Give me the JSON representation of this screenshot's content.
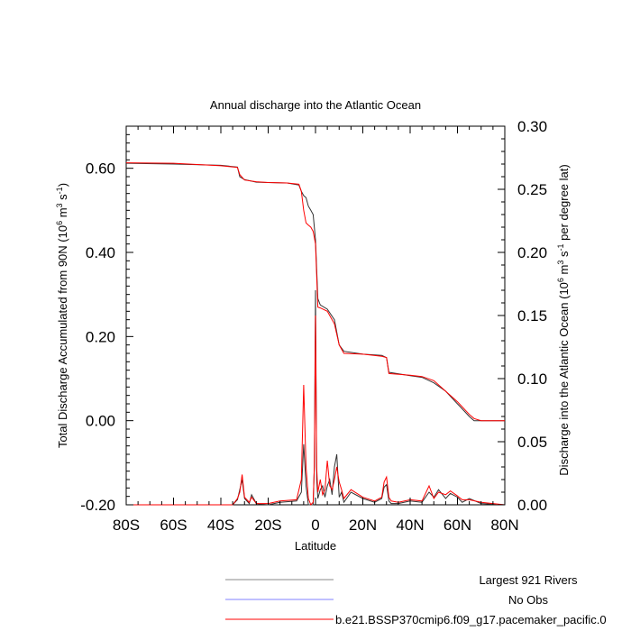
{
  "chart_data": {
    "type": "line",
    "title": "Annual discharge into the Atlantic Ocean",
    "xlabel": "Latitude",
    "ylabel_left": "Total Discharge Accumulated from 90N (10",
    "ylabel_left_sup1": "6",
    "ylabel_left_mid": " m",
    "ylabel_left_sup2": "3",
    "ylabel_left_mid2": " s",
    "ylabel_left_sup3": "-1",
    "ylabel_left_end": ")",
    "ylabel_right": "Discharge into the Atlantic Ocean (10",
    "ylabel_right_sup1": "6",
    "ylabel_right_mid": " m",
    "ylabel_right_sup2": "3",
    "ylabel_right_mid2": " s",
    "ylabel_right_sup3": "-1",
    "ylabel_right_end": " per degree lat)",
    "xlim": [
      -80,
      80
    ],
    "ylim_left": [
      -0.2,
      0.7
    ],
    "ylim_right": [
      0.0,
      0.3
    ],
    "xticks": [
      "80S",
      "60S",
      "40S",
      "20S",
      "0",
      "20N",
      "40N",
      "60N",
      "80N"
    ],
    "yticks_left": [
      "0.60",
      "0.40",
      "0.20",
      "0.00",
      "-0.20"
    ],
    "yticks_right": [
      "0.30",
      "0.25",
      "0.20",
      "0.15",
      "0.10",
      "0.05",
      "0.00"
    ],
    "legend": [
      {
        "name": "Largest 921 Rivers",
        "color": "#888888"
      },
      {
        "name": "No Obs",
        "color": "#8080ff"
      },
      {
        "name": "b.e21.BSSP370cmip6.f09_g17.pacemaker_pacific.0",
        "color": "#ff0000"
      }
    ],
    "series": [
      {
        "name": "Largest 921 Rivers (accumulated)",
        "color": "#333333",
        "axis": "left",
        "x": [
          -80,
          -60,
          -40,
          -33,
          -32,
          -30,
          -25,
          -20,
          -12,
          -7,
          -6,
          -5,
          -4,
          -3,
          -2,
          -1,
          0,
          1,
          2,
          5,
          8,
          10,
          12,
          20,
          28,
          30,
          31,
          40,
          45,
          50,
          55,
          60,
          65,
          67,
          70,
          80
        ],
        "y": [
          0.612,
          0.61,
          0.607,
          0.603,
          0.58,
          0.573,
          0.567,
          0.566,
          0.565,
          0.56,
          0.545,
          0.535,
          0.53,
          0.51,
          0.5,
          0.49,
          0.43,
          0.29,
          0.275,
          0.265,
          0.24,
          0.18,
          0.165,
          0.158,
          0.155,
          0.15,
          0.115,
          0.107,
          0.103,
          0.09,
          0.07,
          0.04,
          0.01,
          0.0,
          0.0,
          0.0
        ]
      },
      {
        "name": "b.e21.BSSP370cmip6.f09_g17.pacemaker_pacific.0 (accumulated)",
        "color": "#ff0000",
        "axis": "left",
        "x": [
          -80,
          -60,
          -40,
          -33,
          -32,
          -30,
          -25,
          -20,
          -12,
          -7,
          -6,
          -5,
          -4,
          -3,
          -2,
          -1,
          0,
          1,
          2,
          5,
          8,
          10,
          12,
          20,
          28,
          30,
          31,
          40,
          45,
          50,
          55,
          60,
          65,
          67,
          70,
          80
        ],
        "y": [
          0.613,
          0.612,
          0.606,
          0.602,
          0.585,
          0.572,
          0.568,
          0.566,
          0.565,
          0.562,
          0.545,
          0.5,
          0.47,
          0.465,
          0.46,
          0.45,
          0.42,
          0.27,
          0.268,
          0.26,
          0.23,
          0.18,
          0.16,
          0.158,
          0.153,
          0.15,
          0.112,
          0.108,
          0.105,
          0.095,
          0.07,
          0.045,
          0.015,
          0.005,
          0.0,
          0.0
        ]
      },
      {
        "name": "Largest 921 Rivers (per degree lat)",
        "color": "#333333",
        "axis": "right",
        "x": [
          -80,
          -35,
          -33,
          -32,
          -31,
          -30,
          -28,
          -27,
          -25,
          -20,
          -15,
          -8,
          -6,
          -5,
          -4,
          -3,
          -2,
          -1,
          -0.5,
          0,
          0.5,
          1,
          2,
          3,
          4,
          5,
          6,
          7,
          8,
          9,
          10,
          11,
          12,
          15,
          20,
          25,
          28,
          29,
          30,
          31,
          32,
          35,
          40,
          45,
          48,
          50,
          52,
          55,
          57,
          60,
          62,
          65,
          70,
          80
        ],
        "y": [
          0,
          0,
          0.004,
          0.012,
          0.02,
          0.005,
          0.001,
          0.008,
          0.001,
          0.0,
          0.002,
          0.003,
          0.01,
          0.048,
          0.015,
          0.0,
          0.0,
          0.0,
          0.03,
          0.17,
          0.02,
          0.005,
          0.012,
          0.015,
          0.006,
          0.015,
          0.02,
          0.008,
          0.03,
          0.04,
          0.006,
          0.01,
          0.002,
          0.01,
          0.005,
          0.002,
          0.005,
          0.014,
          0.016,
          0.003,
          0.001,
          0.001,
          0.003,
          0.002,
          0.01,
          0.006,
          0.012,
          0.005,
          0.009,
          0.006,
          0.002,
          0.005,
          0.001,
          0.0
        ]
      },
      {
        "name": "b.e21.BSSP370cmip6.f09_g17.pacemaker_pacific.0 (per degree lat)",
        "color": "#ff0000",
        "axis": "right",
        "x": [
          -80,
          -35,
          -33,
          -32,
          -31,
          -30,
          -28,
          -27,
          -25,
          -20,
          -15,
          -8,
          -6,
          -5,
          -4,
          -3,
          -2,
          -1,
          -0.5,
          0,
          0.5,
          1,
          2,
          3,
          4,
          5,
          6,
          7,
          8,
          9,
          10,
          11,
          12,
          15,
          20,
          25,
          28,
          29,
          30,
          31,
          32,
          35,
          40,
          45,
          48,
          50,
          52,
          55,
          57,
          60,
          62,
          65,
          70,
          80
        ],
        "y": [
          0,
          0,
          0.005,
          0.01,
          0.024,
          0.006,
          0.002,
          0.006,
          0.001,
          0.001,
          0.003,
          0.004,
          0.02,
          0.095,
          0.03,
          0.005,
          0.0,
          0.002,
          0.03,
          0.15,
          0.03,
          0.01,
          0.02,
          0.008,
          0.012,
          0.035,
          0.015,
          0.012,
          0.02,
          0.03,
          0.018,
          0.012,
          0.005,
          0.012,
          0.006,
          0.003,
          0.006,
          0.018,
          0.022,
          0.006,
          0.003,
          0.002,
          0.004,
          0.003,
          0.015,
          0.005,
          0.01,
          0.008,
          0.011,
          0.007,
          0.004,
          0.004,
          0.002,
          0.0
        ]
      }
    ]
  }
}
